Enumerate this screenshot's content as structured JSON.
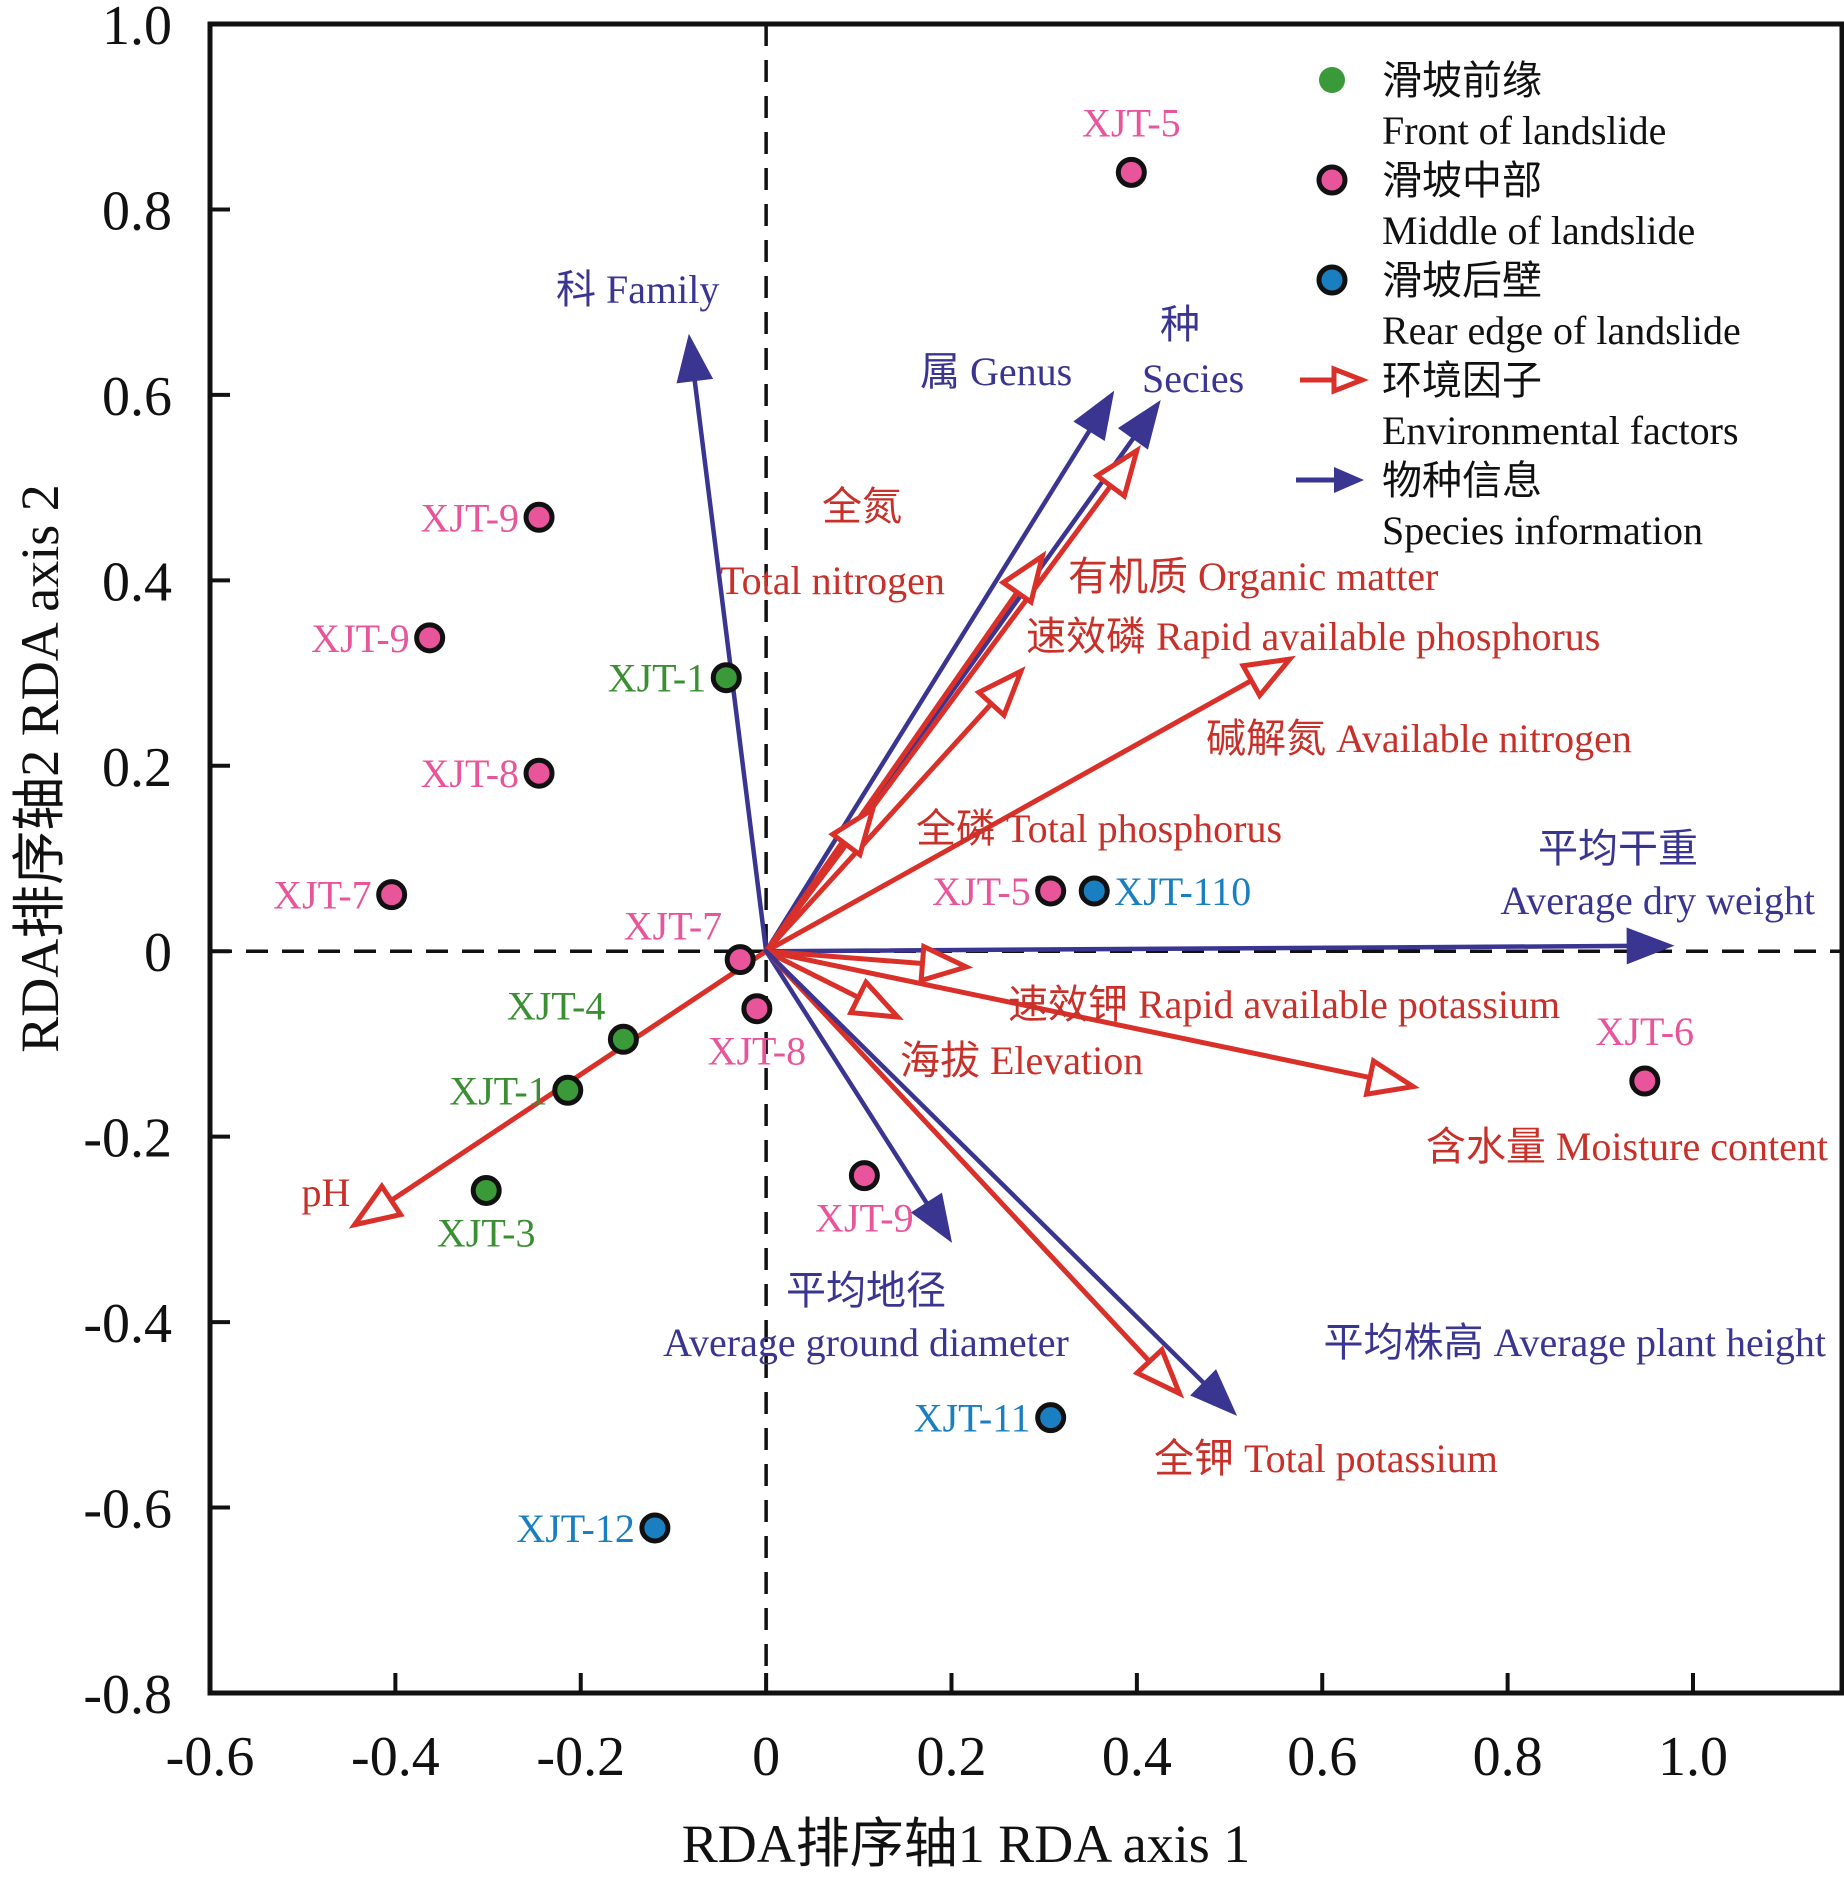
{
  "chart_data": {
    "type": "scatter",
    "subtype": "RDA biplot",
    "title": "",
    "xlabel": "RDA排序轴1  RDA axis 1",
    "ylabel": "RDA排序轴2  RDA axis 2",
    "xlim": [
      -0.6,
      1.15
    ],
    "ylim": [
      -0.8,
      1.0
    ],
    "xticks": [
      -0.6,
      -0.4,
      -0.2,
      0,
      0.2,
      0.4,
      0.6,
      0.8,
      1.0
    ],
    "xtick_labels": [
      "-0.6",
      "-0.4",
      "-0.2",
      "0",
      "0.2",
      "0.4",
      "0.6",
      "0.8",
      "1.0"
    ],
    "yticks": [
      -0.8,
      -0.6,
      -0.4,
      -0.2,
      0,
      0.2,
      0.4,
      0.6,
      0.8,
      1.0
    ],
    "ytick_labels": [
      "-0.8",
      "-0.6",
      "-0.4",
      "-0.2",
      "0",
      "0.2",
      "0.4",
      "0.6",
      "0.8",
      "1.0"
    ],
    "grid": false,
    "zero_lines": "dashed",
    "legend_position": "top-right",
    "colors": {
      "front": "#3a9a3a",
      "middle": "#e8559a",
      "rear": "#1a7fc1",
      "environment": "#d9302a",
      "species": "#3a3590",
      "front_label": "#3b8f33",
      "middle_label": "#e8559a",
      "rear_label": "#1a7fc1",
      "env_label": "#c8302a",
      "species_label": "#3a3590"
    },
    "series": [
      {
        "name": "滑坡前缘 Front of landslide",
        "group": "front",
        "points": [
          {
            "label": "XJT-1",
            "x": -0.043,
            "y": 0.295,
            "label_pos": "left"
          },
          {
            "label": "XJT-4",
            "x": -0.154,
            "y": -0.095,
            "label_pos": "upper-left"
          },
          {
            "label": "XJT-1",
            "x": -0.214,
            "y": -0.15,
            "label_pos": "left"
          },
          {
            "label": "XJT-3",
            "x": -0.302,
            "y": -0.258,
            "label_pos": "below"
          }
        ]
      },
      {
        "name": "滑坡中部 Middle of landslide",
        "group": "middle",
        "points": [
          {
            "label": "XJT-5",
            "x": 0.394,
            "y": 0.84,
            "label_pos": "above"
          },
          {
            "label": "XJT-9",
            "x": -0.245,
            "y": 0.468,
            "label_pos": "left"
          },
          {
            "label": "XJT-9",
            "x": -0.363,
            "y": 0.338,
            "label_pos": "left"
          },
          {
            "label": "XJT-8",
            "x": -0.245,
            "y": 0.192,
            "label_pos": "left"
          },
          {
            "label": "XJT-7",
            "x": -0.404,
            "y": 0.061,
            "label_pos": "left"
          },
          {
            "label": "XJT-7",
            "x": -0.028,
            "y": -0.009,
            "label_pos": "upper-left"
          },
          {
            "label": "XJT-8",
            "x": -0.01,
            "y": -0.062,
            "label_pos": "below"
          },
          {
            "label": "XJT-5",
            "x": 0.307,
            "y": 0.065,
            "label_pos": "left"
          },
          {
            "label": "XJT-9",
            "x": 0.106,
            "y": -0.242,
            "label_pos": "below"
          },
          {
            "label": "XJT-6",
            "x": 0.948,
            "y": -0.14,
            "label_pos": "above"
          }
        ]
      },
      {
        "name": "滑坡后壁 Rear edge of landslide",
        "group": "rear",
        "points": [
          {
            "label": "XJT-110",
            "x": 0.354,
            "y": 0.065,
            "label_pos": "right"
          },
          {
            "label": "XJT-11",
            "x": 0.307,
            "y": -0.503,
            "label_pos": "left"
          },
          {
            "label": "XJT-12",
            "x": -0.12,
            "y": -0.622,
            "label_pos": "left"
          }
        ]
      }
    ],
    "vectors": [
      {
        "group": "species",
        "cn": "科",
        "en": "Family",
        "x": -0.083,
        "y": 0.663,
        "label": "科 Family"
      },
      {
        "group": "species",
        "cn": "属",
        "en": "Genus",
        "x": 0.374,
        "y": 0.602,
        "label": "属 Genus"
      },
      {
        "group": "species",
        "cn": "种",
        "en": "Secies",
        "x": 0.424,
        "y": 0.592,
        "label": "种 Secies"
      },
      {
        "group": "environment",
        "cn": "有机质",
        "en": "Organic matter",
        "x": 0.4,
        "y": 0.54,
        "label": "有机质 Organic matter"
      },
      {
        "group": "environment",
        "cn": "全氮",
        "en": "Total nitrogen",
        "x": 0.298,
        "y": 0.426,
        "label": "全氮 Total nitrogen"
      },
      {
        "group": "environment",
        "cn": "速效磷",
        "en": "Rapid available phosphorus",
        "x": 0.275,
        "y": 0.302,
        "label": "速效磷 Rapid available phosphorus"
      },
      {
        "group": "environment",
        "cn": "碱解氮",
        "en": "Available nitrogen",
        "x": 0.565,
        "y": 0.315,
        "label": "碱解氮 Available nitrogen"
      },
      {
        "group": "environment",
        "cn": "全磷",
        "en": "Total phosphorus",
        "x": 0.115,
        "y": 0.153,
        "label": "全磷 Total phosphorus"
      },
      {
        "group": "species",
        "cn": "平均干重",
        "en": "Average dry weight",
        "x": 0.977,
        "y": 0.006,
        "label": "平均干重 Average dry weight"
      },
      {
        "group": "environment",
        "cn": "速效钾",
        "en": "Rapid available potassium",
        "x": 0.216,
        "y": -0.017,
        "label": "速效钾 Rapid available potassium"
      },
      {
        "group": "environment",
        "cn": "海拔",
        "en": "Elevation",
        "x": 0.142,
        "y": -0.071,
        "label": "海拔 Elevation"
      },
      {
        "group": "environment",
        "cn": "含水量",
        "en": "Moisture content",
        "x": 0.698,
        "y": -0.146,
        "label": "含水量 Moisture content"
      },
      {
        "group": "environment",
        "cn": "",
        "en": "pH",
        "x": -0.444,
        "y": -0.295,
        "label": "pH"
      },
      {
        "group": "species",
        "cn": "平均地径",
        "en": "Average ground diameter",
        "x": 0.199,
        "y": -0.312,
        "label": "平均地径 Average ground diameter"
      },
      {
        "group": "environment",
        "cn": "全钾",
        "en": "Total potassium",
        "x": 0.446,
        "y": -0.477,
        "label": "全钾 Total potassium"
      },
      {
        "group": "species",
        "cn": "平均株高",
        "en": "Average plant height",
        "x": 0.506,
        "y": -0.499,
        "label": "平均株高 Average plant height"
      }
    ],
    "legend": [
      {
        "kind": "dot",
        "group": "front",
        "cn": "滑坡前缘",
        "en": "Front of landslide"
      },
      {
        "kind": "dot",
        "group": "middle",
        "cn": "滑坡中部",
        "en": "Middle of  landslide"
      },
      {
        "kind": "dot",
        "group": "rear",
        "cn": "滑坡后壁",
        "en": "Rear edge of landslide"
      },
      {
        "kind": "open-arrow",
        "group": "environment",
        "cn": "环境因子",
        "en": "Environmental factors"
      },
      {
        "kind": "solid-arrow",
        "group": "species",
        "cn": "物种信息",
        "en": "Species information"
      }
    ]
  }
}
